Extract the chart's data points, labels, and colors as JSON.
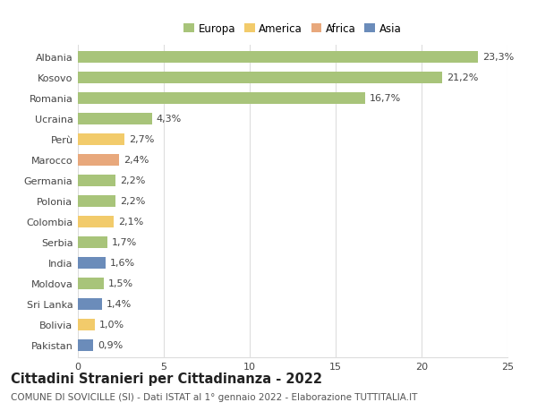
{
  "countries": [
    "Albania",
    "Kosovo",
    "Romania",
    "Ucraina",
    "Perù",
    "Marocco",
    "Germania",
    "Polonia",
    "Colombia",
    "Serbia",
    "India",
    "Moldova",
    "Sri Lanka",
    "Bolivia",
    "Pakistan"
  ],
  "values": [
    23.3,
    21.2,
    16.7,
    4.3,
    2.7,
    2.4,
    2.2,
    2.2,
    2.1,
    1.7,
    1.6,
    1.5,
    1.4,
    1.0,
    0.9
  ],
  "labels": [
    "23,3%",
    "21,2%",
    "16,7%",
    "4,3%",
    "2,7%",
    "2,4%",
    "2,2%",
    "2,2%",
    "2,1%",
    "1,7%",
    "1,6%",
    "1,5%",
    "1,4%",
    "1,0%",
    "0,9%"
  ],
  "continents": [
    "Europa",
    "Europa",
    "Europa",
    "Europa",
    "America",
    "Africa",
    "Europa",
    "Europa",
    "America",
    "Europa",
    "Asia",
    "Europa",
    "Asia",
    "America",
    "Asia"
  ],
  "colors": {
    "Europa": "#a8c47a",
    "America": "#f2cb6b",
    "Africa": "#e8a87c",
    "Asia": "#6b8cba"
  },
  "legend_order": [
    "Europa",
    "America",
    "Africa",
    "Asia"
  ],
  "xlim": [
    0,
    25
  ],
  "xticks": [
    0,
    5,
    10,
    15,
    20,
    25
  ],
  "title": "Cittadini Stranieri per Cittadinanza - 2022",
  "subtitle": "COMUNE DI SOVICILLE (SI) - Dati ISTAT al 1° gennaio 2022 - Elaborazione TUTTITALIA.IT",
  "background_color": "#ffffff",
  "grid_color": "#dddddd",
  "bar_height": 0.55,
  "label_fontsize": 8,
  "tick_fontsize": 8,
  "title_fontsize": 10.5,
  "subtitle_fontsize": 7.5
}
